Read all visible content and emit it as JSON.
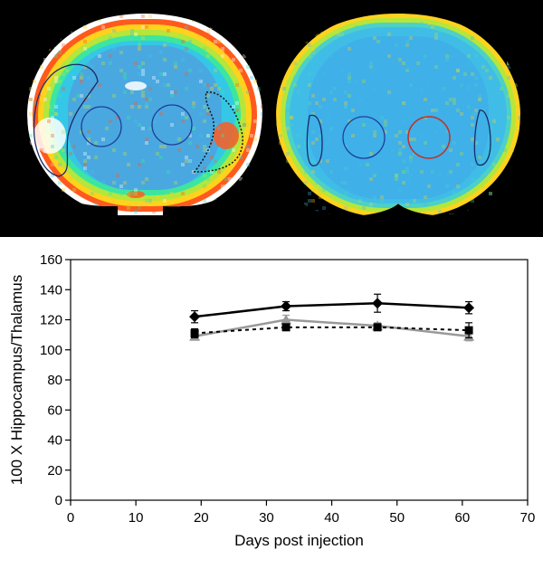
{
  "images": {
    "left_slice": {
      "ring_colors": [
        "#ffffff",
        "#ff5a1e",
        "#ffd21e",
        "#b4e63c",
        "#3ce6a0",
        "#34c8e6"
      ],
      "inner_color": "#4aa8e0",
      "roi_colors": [
        "#1f3f99",
        "#1f3f99"
      ],
      "outline_color": "#1a2a66",
      "lesion_outline_color": "#111111"
    },
    "right_slice": {
      "ring_colors": [
        "#ffd21e",
        "#b4e63c",
        "#4cd0c8",
        "#40bde6"
      ],
      "inner_color": "#3fb0e8",
      "roi_colors": [
        "#1f3f99",
        "#c0302a"
      ],
      "outline_color": "#1a2a66"
    }
  },
  "chart_data": {
    "type": "line",
    "title": "",
    "xlabel": "Days post injection",
    "ylabel": "100 X Hippocampus/Thalamus",
    "xlim": [
      0,
      70
    ],
    "ylim": [
      0,
      160
    ],
    "xticks": [
      0,
      10,
      20,
      30,
      40,
      50,
      60,
      70
    ],
    "yticks": [
      0,
      20,
      40,
      60,
      80,
      100,
      120,
      140,
      160
    ],
    "grid": false,
    "legend": "none",
    "series": [
      {
        "marker": "diamond",
        "color": "#000000",
        "line": "solid",
        "x": [
          19,
          33,
          47,
          61
        ],
        "y": [
          122,
          129,
          131,
          128
        ],
        "err": [
          4,
          3,
          6,
          4
        ]
      },
      {
        "marker": "triangle",
        "color": "#999999",
        "line": "solid",
        "x": [
          19,
          33,
          47,
          61
        ],
        "y": [
          109,
          120,
          116,
          109
        ],
        "err": [
          2,
          3,
          2,
          3
        ]
      },
      {
        "marker": "square",
        "color": "#000000",
        "line": "dashed",
        "x": [
          19,
          33,
          47,
          61
        ],
        "y": [
          111,
          115,
          115,
          113
        ],
        "err": [
          3,
          2,
          2,
          5
        ]
      }
    ]
  }
}
